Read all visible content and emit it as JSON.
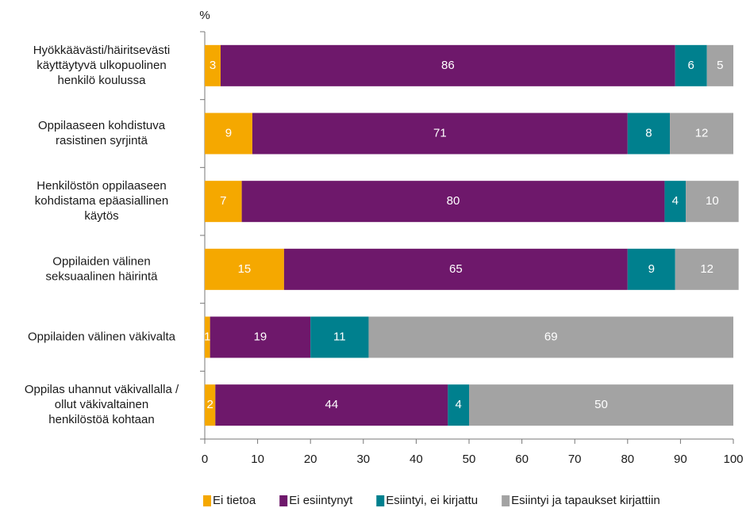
{
  "chart_data": {
    "type": "stacked_barh",
    "xlabel": "%",
    "categories": [
      "Hyökkäävästi/häiritsevästi\nkäyttäytyvä ulkopuolinen\nhenkilö koulussa",
      "Oppilaaseen kohdistuva\nrasistinen syrjintä",
      "Henkilöstön oppilaaseen\nkohdistama epäasiallinen\nkäytös",
      "Oppilaiden välinen\nseksuaalinen häirintä",
      "Oppilaiden välinen väkivalta",
      "Oppilas uhannut väkivallalla /\nollut väkivaltainen\nhenkilöstöä kohtaan"
    ],
    "series": [
      {
        "name": "Ei tietoa",
        "color": "#f5a800",
        "values": [
          3,
          9,
          7,
          15,
          1,
          2
        ]
      },
      {
        "name": "Ei esiintynyt",
        "color": "#6e186b",
        "values": [
          86,
          71,
          80,
          65,
          19,
          44
        ]
      },
      {
        "name": "Esiintyi, ei kirjattu",
        "color": "#00808e",
        "values": [
          6,
          8,
          4,
          9,
          11,
          4
        ]
      },
      {
        "name": "Esiintyi ja tapaukset kirjattiin",
        "color": "#a3a3a3",
        "values": [
          5,
          12,
          10,
          12,
          69,
          50
        ]
      }
    ],
    "xlim": [
      0,
      100
    ],
    "xticks": [
      0,
      10,
      20,
      30,
      40,
      50,
      60,
      70,
      80,
      90,
      100
    ],
    "legend": "bottom"
  }
}
